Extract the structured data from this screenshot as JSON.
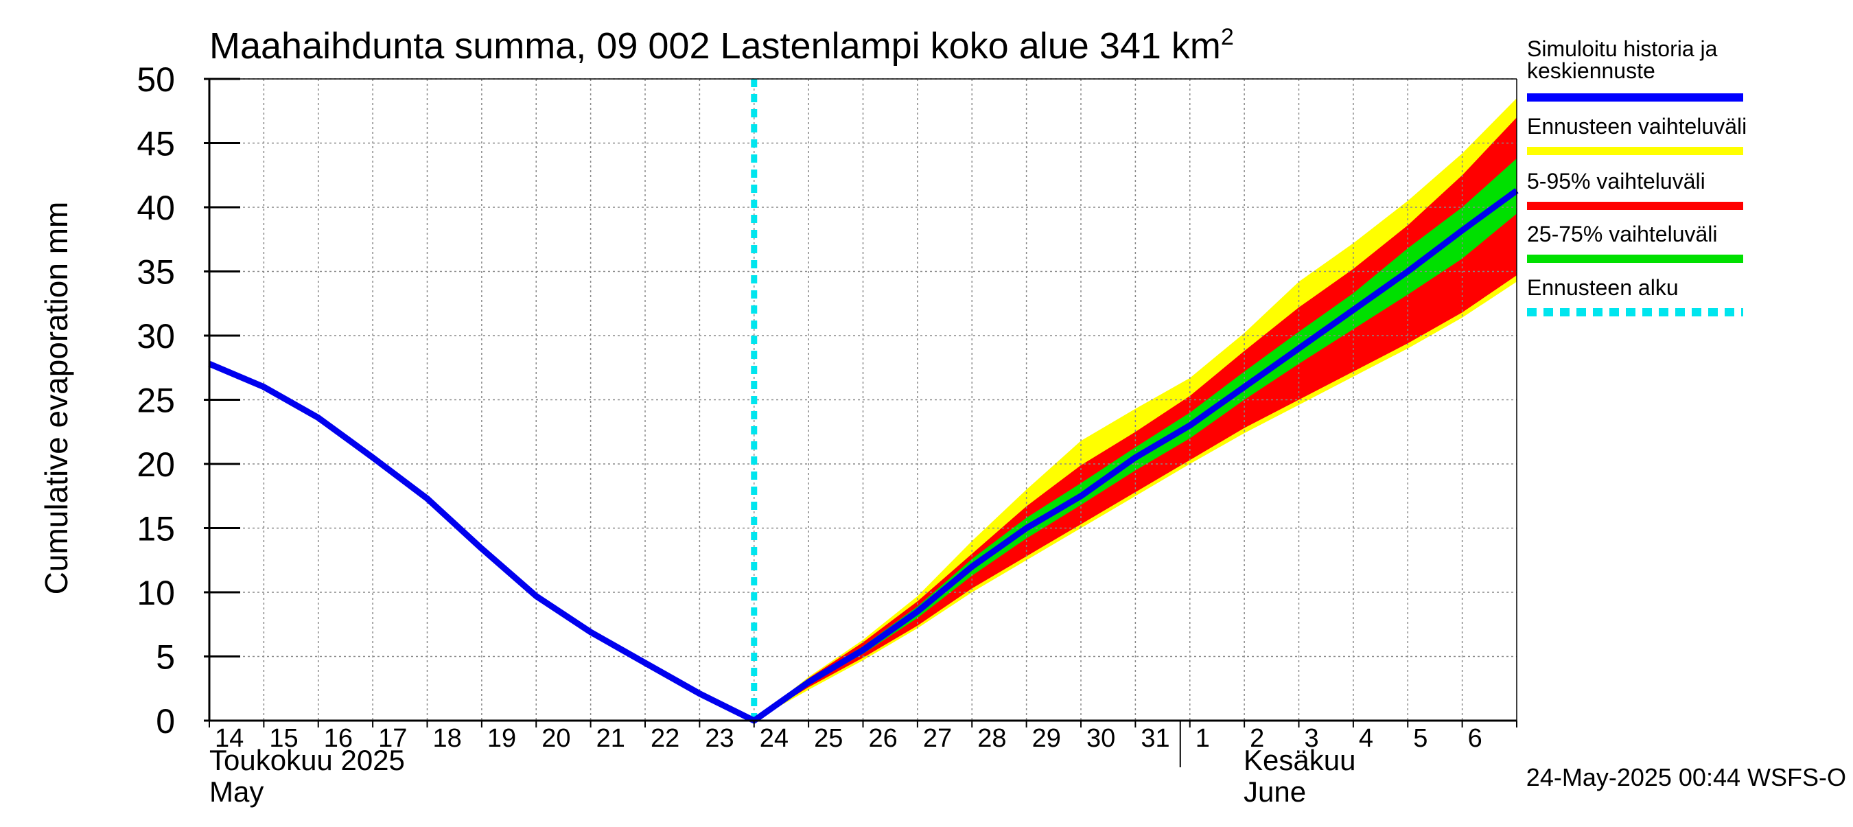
{
  "chart_data": {
    "type": "area",
    "title_main": "Maahaihdunta summa, 09 002 Lastenlampi koko alue 341 km",
    "title_sup": "2",
    "ylabel": "Cumulative evaporation   mm",
    "ylim": [
      0,
      50
    ],
    "yticks": [
      0,
      5,
      10,
      15,
      20,
      25,
      30,
      35,
      40,
      45,
      50
    ],
    "x_range": [
      "2025-05-14",
      "2025-06-07"
    ],
    "x_tick_labels": [
      "14",
      "15",
      "16",
      "17",
      "18",
      "19",
      "20",
      "21",
      "22",
      "23",
      "24",
      "25",
      "26",
      "27",
      "28",
      "29",
      "30",
      "31",
      "1",
      "2",
      "3",
      "4",
      "5",
      "6"
    ],
    "month_labels": {
      "may_fi": "Toukokuu  2025",
      "may_en": "May",
      "june_fi": "Kesäkuu",
      "june_en": "June"
    },
    "forecast_start_x": 10.0,
    "grid": true,
    "legend_position": "right",
    "legend": [
      {
        "label": "Simuloitu historia ja keskiennuste",
        "color": "#0000ff",
        "style": "solid"
      },
      {
        "label": "Ennusteen vaihteluväli",
        "color": "#ffff00",
        "style": "solid"
      },
      {
        "label": "5-95% vaihteluväli",
        "color": "#ff0000",
        "style": "solid"
      },
      {
        "label": "25-75% vaihteluväli",
        "color": "#00e000",
        "style": "solid"
      },
      {
        "label": "Ennusteen alku",
        "color": "#00e5ee",
        "style": "dashed"
      }
    ],
    "history": {
      "x": [
        0,
        1,
        2,
        3,
        4,
        5,
        6,
        7,
        8,
        9,
        10
      ],
      "y": [
        27.8,
        26.0,
        23.6,
        20.5,
        17.3,
        13.4,
        9.7,
        6.9,
        4.5,
        2.1,
        0.0
      ]
    },
    "forecast": {
      "x": [
        10,
        11,
        12,
        13,
        14,
        15,
        16,
        17,
        18,
        19,
        20,
        21,
        22,
        23,
        24
      ],
      "median": [
        0.0,
        3.0,
        5.5,
        8.5,
        12.0,
        15.0,
        17.5,
        20.5,
        23.0,
        26.0,
        29.0,
        32.0,
        35.0,
        38.2,
        41.3
      ],
      "p25": [
        0.0,
        2.8,
        5.2,
        8.0,
        11.3,
        14.2,
        16.8,
        19.5,
        22.0,
        25.0,
        27.8,
        30.5,
        33.2,
        36.0,
        39.5
      ],
      "p75": [
        0.0,
        3.2,
        5.8,
        8.9,
        12.6,
        15.8,
        18.5,
        21.3,
        24.0,
        27.2,
        30.3,
        33.3,
        36.8,
        40.0,
        43.8
      ],
      "p5": [
        0.0,
        2.6,
        4.9,
        7.4,
        10.3,
        12.8,
        15.3,
        17.8,
        20.3,
        22.8,
        25.0,
        27.2,
        29.4,
        31.8,
        34.7
      ],
      "p95": [
        0.0,
        3.3,
        6.1,
        9.3,
        13.0,
        16.7,
        19.9,
        22.5,
        25.3,
        28.8,
        32.2,
        35.2,
        38.6,
        42.5,
        47.0
      ],
      "min": [
        0.0,
        2.4,
        4.7,
        7.2,
        10.0,
        12.5,
        15.0,
        17.5,
        20.0,
        22.4,
        24.6,
        26.8,
        29.0,
        31.4,
        34.2
      ],
      "max": [
        0.0,
        3.4,
        6.3,
        9.7,
        14.0,
        18.0,
        21.8,
        24.3,
        26.7,
        30.2,
        34.2,
        37.2,
        40.5,
        44.2,
        48.5
      ]
    },
    "footer": "24-May-2025 00:44 WSFS-O"
  }
}
